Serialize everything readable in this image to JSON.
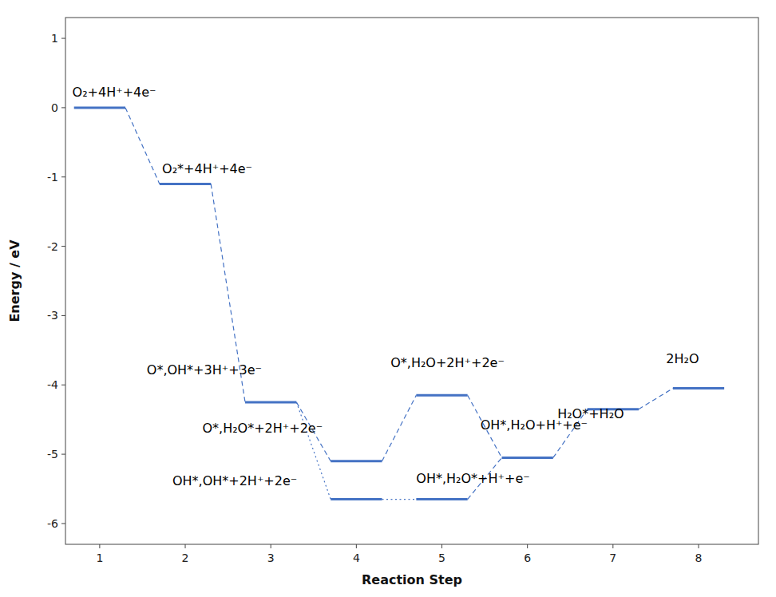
{
  "chart_data": {
    "type": "level",
    "xlabel": "Reaction Step",
    "ylabel": "Energy / eV",
    "color": "#4472C4",
    "grid": false,
    "xlim": [
      0.6,
      8.7
    ],
    "ylim": [
      -6.3,
      1.3
    ],
    "xticks": [
      1,
      2,
      3,
      4,
      5,
      6,
      7,
      8
    ],
    "yticks": [
      1,
      0,
      -1,
      -2,
      -3,
      -4,
      -5,
      -6
    ],
    "series": [
      {
        "x": [
          1,
          2,
          3,
          4,
          5,
          6,
          7,
          8
        ],
        "values": [
          0,
          -1.1,
          -4.25,
          -5.1,
          -4.15,
          -5.05,
          -4.35,
          -4.05
        ],
        "line_style": "dashed"
      },
      {
        "x": [
          4,
          5
        ],
        "values": [
          -5.65,
          -5.65
        ],
        "line_style": "dotted"
      }
    ],
    "annotations": [
      {
        "text": "O₂+4H⁺+4e⁻",
        "x": 0.68,
        "y": 0.12
      },
      {
        "text": "O₂*+4H⁺+4e⁻",
        "x": 1.73,
        "y": -0.98
      },
      {
        "text": "O*,OH*+3H⁺+3e⁻",
        "x": 1.55,
        "y": -3.88
      },
      {
        "text": "O*,H₂O*+2H⁺+2e⁻",
        "x": 2.2,
        "y": -4.72
      },
      {
        "text": "OH*,OH*+2H⁺+2e⁻",
        "x": 1.85,
        "y": -5.48
      },
      {
        "text": "O*,H₂O+2H⁺+2e⁻",
        "x": 4.4,
        "y": -3.78
      },
      {
        "text": "OH*,H₂O*+H⁺+e⁻",
        "x": 4.7,
        "y": -5.45
      },
      {
        "text": "OH*,H₂O+H⁺+e⁻",
        "x": 5.45,
        "y": -4.68
      },
      {
        "text": "H₂O*+H₂O",
        "x": 6.35,
        "y": -4.52
      },
      {
        "text": "2H₂O",
        "x": 7.62,
        "y": -3.72
      }
    ]
  }
}
